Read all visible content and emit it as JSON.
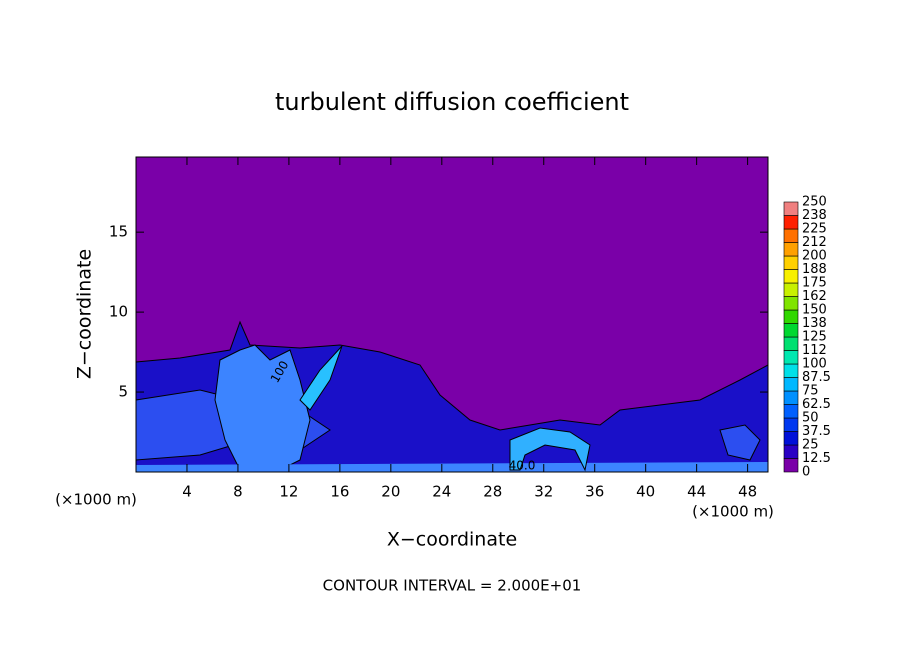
{
  "chart_data": {
    "type": "contour",
    "title": "turbulent diffusion coefficient",
    "x_label": "X−coordinate",
    "y_label": "Z−coordinate",
    "x_unit_left": "(×1000 m)",
    "x_unit_right": "(×1000 m)",
    "footer": "CONTOUR INTERVAL = 2.000E+01",
    "contour_labels": [
      "100",
      "40.0"
    ],
    "xlim": [
      0,
      49.6
    ],
    "xticks": [
      4,
      8,
      12,
      16,
      20,
      24,
      28,
      32,
      36,
      40,
      44,
      48
    ],
    "ylim": [
      0,
      19.7
    ],
    "yticks": [
      5,
      10,
      15
    ],
    "colorbar": {
      "levels": [
        0,
        12.5,
        25,
        37.5,
        50,
        62.5,
        75,
        87.5,
        100,
        112,
        125,
        138,
        150,
        162,
        175,
        188,
        200,
        212,
        225,
        238,
        250
      ],
      "colors": [
        "#7a00a8",
        "#2a00c4",
        "#0010d8",
        "#0038f0",
        "#0060ff",
        "#0090ff",
        "#00b8ff",
        "#00e0e8",
        "#00e8b0",
        "#00e070",
        "#00d830",
        "#30d800",
        "#80e400",
        "#c8f000",
        "#f8f000",
        "#ffd000",
        "#ffa000",
        "#ff7000",
        "#ff2000",
        "#f08080"
      ]
    }
  }
}
